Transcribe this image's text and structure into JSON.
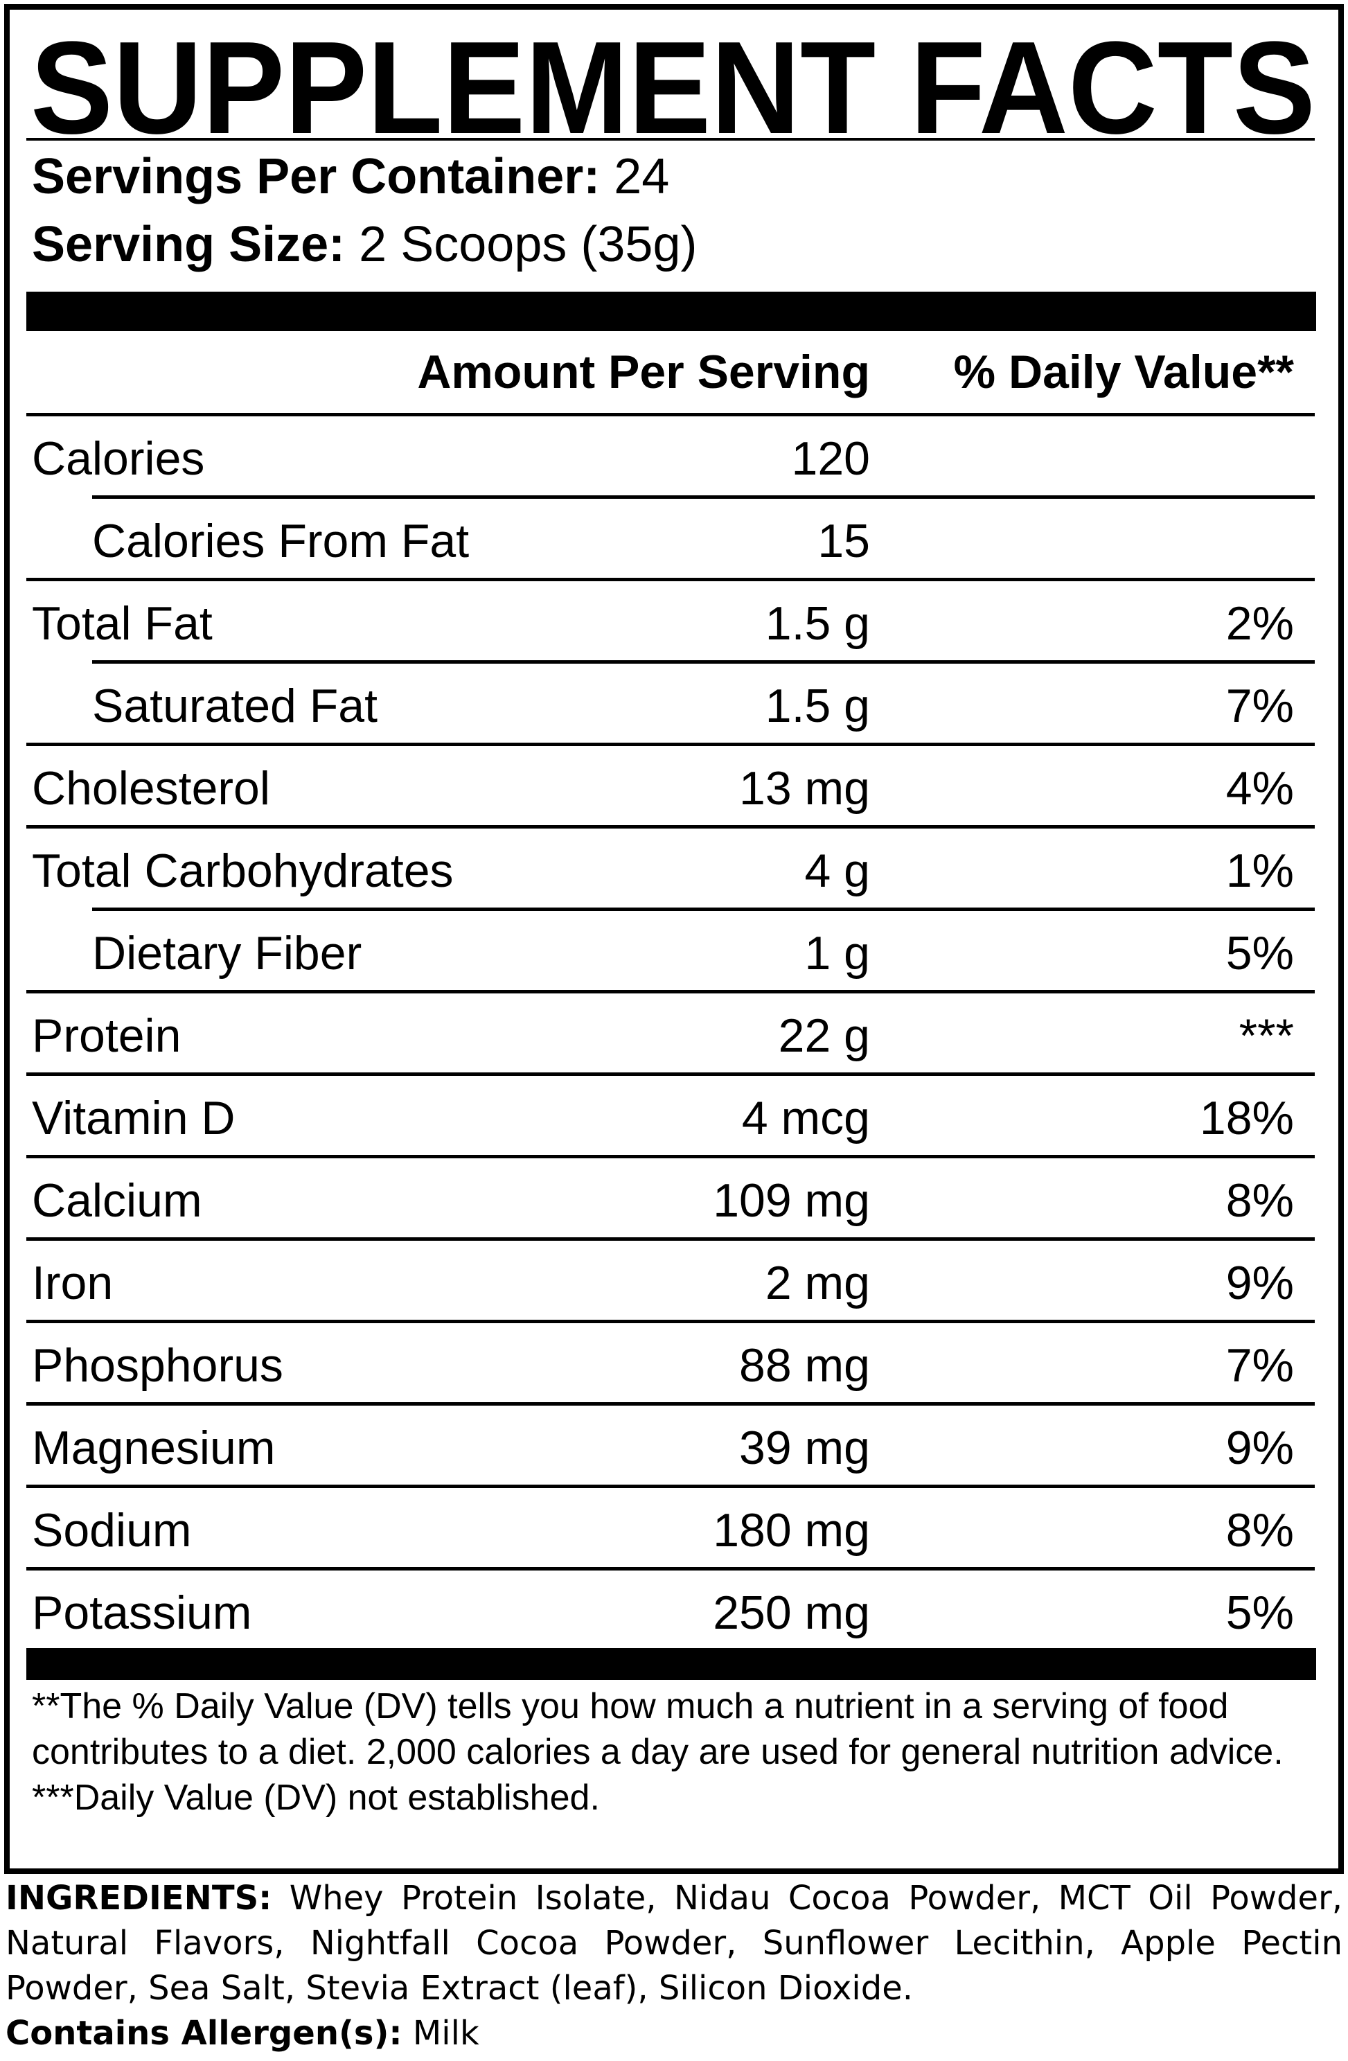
{
  "title": "SUPPLEMENT FACTS",
  "servings": [
    {
      "label": "Servings Per Container:",
      "value": "24"
    },
    {
      "label": "Serving Size:",
      "value": "2 Scoops (35g)"
    }
  ],
  "header": {
    "amount": "Amount Per Serving",
    "dv": "% Daily Value**"
  },
  "rows": [
    {
      "name": "Calories",
      "amount": "120",
      "sub": [
        {
          "name": "Calories From Fat",
          "amount": "15"
        }
      ]
    },
    {
      "name": "Total Fat",
      "amount": "1.5 g",
      "dv": "2%",
      "sub": [
        {
          "name": "Saturated Fat",
          "amount": "1.5 g",
          "dv": "7%"
        }
      ]
    },
    {
      "name": "Cholesterol",
      "amount": "13 mg",
      "dv": "4%"
    },
    {
      "name": "Total Carbohydrates",
      "amount": "4 g",
      "dv": "1%",
      "sub": [
        {
          "name": "Dietary Fiber",
          "amount": "1 g",
          "dv": "5%"
        }
      ]
    },
    {
      "name": "Protein",
      "amount": "22 g",
      "dv": "***"
    },
    {
      "name": "Vitamin D",
      "amount": "4 mcg",
      "dv": "18%"
    },
    {
      "name": "Calcium",
      "amount": "109 mg",
      "dv": "8%"
    },
    {
      "name": "Iron",
      "amount": "2 mg",
      "dv": "9%"
    },
    {
      "name": "Phosphorus",
      "amount": "88 mg",
      "dv": "7%"
    },
    {
      "name": "Magnesium",
      "amount": "39 mg",
      "dv": "9%"
    },
    {
      "name": "Sodium",
      "amount": "180 mg",
      "dv": "8%"
    },
    {
      "name": "Potassium",
      "amount": "250 mg",
      "dv": "5%"
    }
  ],
  "footnotes": [
    "**The % Daily Value (DV) tells you how much a nutrient in a serving of food contributes to a diet. 2,000 calories a day are used for general nutrition advice.",
    "***Daily Value (DV) not established."
  ],
  "ingredients": {
    "label": "INGREDIENTS:",
    "text": "Whey Protein Isolate, Nidau Cocoa Powder, MCT Oil Powder, Natural Flavors, Nightfall Cocoa Powder, Sunflower Lecithin, Apple Pectin Powder, Sea Salt, Stevia Extract (leaf), Silicon Dioxide."
  },
  "allergens": {
    "label": "Contains Allergen(s):",
    "text": "Milk"
  }
}
